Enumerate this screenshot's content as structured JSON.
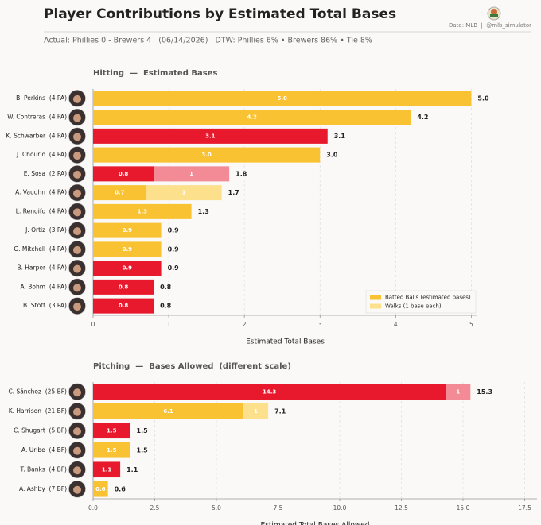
{
  "header": {
    "title": "Player Contributions by Estimated Total Bases",
    "subtitle": "Actual: Phillies 0 - Brewers 4   (06/14/2026)   DTW: Phillies 6% • Brewers 86% • Tie 8%",
    "credit": "Data: MLB  |  @mlb_simulator"
  },
  "chart_data": [
    {
      "type": "bar",
      "orientation": "horizontal",
      "stacked": true,
      "title": "Hitting  —  Estimated Bases",
      "x_label": "Estimated Total Bases",
      "categories": [
        "B. Perkins  (4 PA)",
        "W. Contreras  (4 PA)",
        "K. Schwarber  (4 PA)",
        "J. Chourio  (4 PA)",
        "E. Sosa  (2 PA)",
        "A. Vaughn  (4 PA)",
        "L. Rengifo  (4 PA)",
        "J. Ortiz  (3 PA)",
        "G. Mitchell  (4 PA)",
        "B. Harper  (4 PA)",
        "A. Bohm  (4 PA)",
        "B. Stott  (3 PA)"
      ],
      "series": [
        {
          "name": "Batted Balls (estimated bases)",
          "color": "#f9c232",
          "colors": [
            "#f9c232",
            "#f9c232",
            "#e8192c",
            "#f9c232",
            "#e8192c",
            "#f9c232",
            "#f9c232",
            "#f9c232",
            "#f9c232",
            "#e8192c",
            "#e8192c",
            "#e8192c"
          ],
          "values": [
            5.0,
            4.2,
            3.1,
            3.0,
            0.8,
            0.7,
            1.3,
            0.9,
            0.9,
            0.9,
            0.8,
            0.8
          ],
          "value_labels": [
            "5.0",
            "4.2",
            "3.1",
            "3.0",
            "0.8",
            "0.7",
            "1.3",
            "0.9",
            "0.9",
            "0.9",
            "0.8",
            "0.8"
          ]
        },
        {
          "name": "Walks (1 base each)",
          "color": "#fde08c",
          "colors": [
            null,
            null,
            null,
            null,
            "#f28b95",
            "#fde08c",
            null,
            null,
            null,
            null,
            null,
            null
          ],
          "values": [
            null,
            null,
            null,
            null,
            1,
            1,
            null,
            null,
            null,
            null,
            null,
            null
          ]
        }
      ],
      "totals": {
        "values": [
          5.0,
          4.2,
          3.1,
          3.0,
          1.8,
          1.7,
          1.3,
          0.9,
          0.9,
          0.9,
          0.8,
          0.8
        ],
        "value_labels": [
          "5.0",
          "4.2",
          "3.1",
          "3.0",
          "1.8",
          "1.7",
          "1.3",
          "0.9",
          "0.9",
          "0.9",
          "0.8",
          "0.8"
        ]
      },
      "xlim": [
        0,
        5.08
      ],
      "xticks": [
        0,
        1,
        2,
        3,
        4,
        5
      ],
      "grid": true,
      "legend": "lower right"
    },
    {
      "type": "bar",
      "orientation": "horizontal",
      "stacked": true,
      "title": "Pitching  —  Bases Allowed  (different scale)",
      "x_label": "Estimated Total Bases Allowed",
      "categories": [
        "C. Sánchez  (25 BF)",
        "K. Harrison  (21 BF)",
        "C. Shugart  (5 BF)",
        "A. Uribe  (4 BF)",
        "T. Banks  (4 BF)",
        "A. Ashby  (7 BF)"
      ],
      "series": [
        {
          "colors": [
            "#e8192c",
            "#f9c232",
            "#e8192c",
            "#f9c232",
            "#e8192c",
            "#f9c232"
          ],
          "values": [
            14.3,
            6.1,
            1.5,
            1.5,
            1.1,
            0.6
          ]
        },
        {
          "colors": [
            "#f28b95",
            "#fde08c",
            null,
            null,
            null,
            null
          ],
          "values": [
            1,
            1,
            null,
            null,
            null,
            null
          ]
        }
      ],
      "totals": {
        "values": [
          15.3,
          7.1,
          1.5,
          1.5,
          1.1,
          0.6
        ]
      },
      "xlim": [
        0,
        18
      ],
      "xticks": [
        {
          "value": 0,
          "label": "0.0"
        },
        2.5,
        {
          "value": 5,
          "label": "5.0"
        },
        7.5,
        {
          "value": 10,
          "label": "10.0"
        },
        12.5,
        {
          "value": 15,
          "label": "15.0"
        },
        17.5
      ],
      "grid": true
    }
  ]
}
